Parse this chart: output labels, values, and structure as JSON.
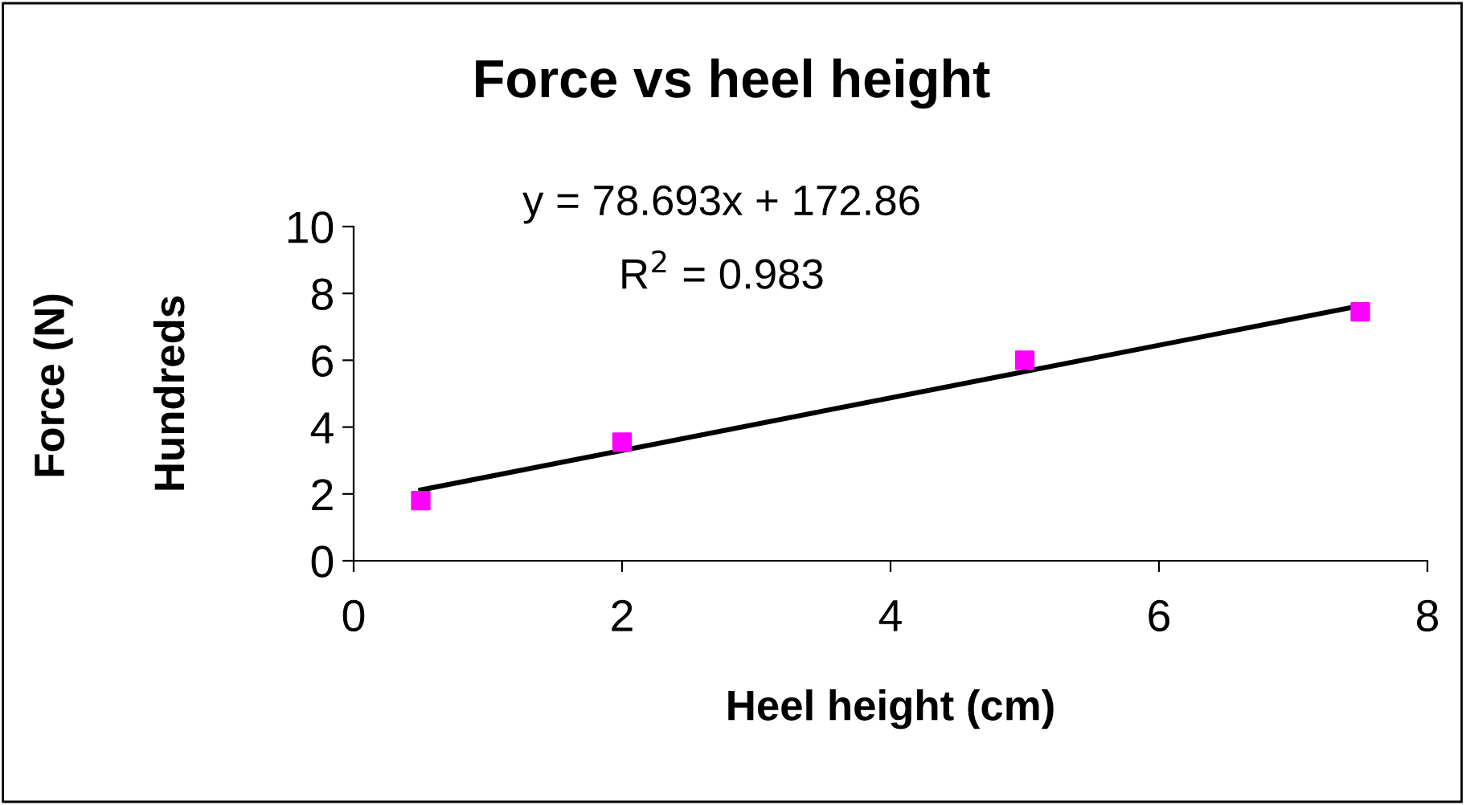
{
  "chart_data": {
    "type": "scatter",
    "title": "Force vs heel height",
    "xlabel": "Heel height (cm)",
    "ylabel": "Hundreds",
    "annotations": [
      "Force (N)",
      "y = 78.693x + 172.86",
      "R$^{2}$ = 0.983"
    ],
    "series": [
      {
        "color": "#ff00ff",
        "x": [
          0.5,
          2,
          5,
          7.5
        ],
        "values": [
          1.8,
          3.55,
          6.0,
          7.45
        ],
        "marker": "square"
      },
      {
        "type": "line",
        "color": "#000000",
        "x": [
          0.5,
          7.5
        ],
        "values": [
          2.12,
          7.63
        ],
        "marker": "none",
        "line_style": "solid"
      }
    ],
    "xlim": [
      0,
      8
    ],
    "xticks": [
      0,
      2,
      4,
      6,
      8
    ],
    "ylim": [
      0,
      10
    ],
    "yticks": [
      0,
      2,
      4,
      6,
      8,
      10
    ],
    "grid": false,
    "legend": false
  }
}
